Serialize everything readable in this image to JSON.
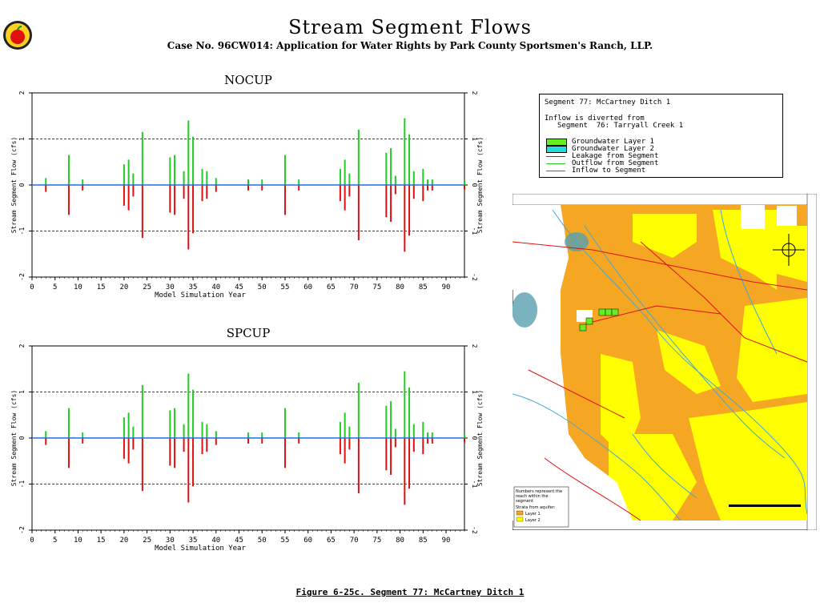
{
  "header": {
    "title": "Stream Segment Flows",
    "subtitle": "Case No. 96CW014: Application for Water Rights by Park County Sportsmen's Ranch, LLP."
  },
  "legend": {
    "segment": "Segment 77: McCartney Ditch 1",
    "diverted_line1": "Inflow is diverted from",
    "diverted_line2": "Segment  76: Tarryall Creek 1",
    "items": [
      {
        "label": "Groundwater Layer 1",
        "kind": "swatch",
        "color": "#66ee22"
      },
      {
        "label": "Groundwater Layer 2",
        "kind": "swatch",
        "color": "#22dddd"
      },
      {
        "label": "Leakage from Segment",
        "kind": "line",
        "color": "#dd1111"
      },
      {
        "label": "Outflow from Segment",
        "kind": "line",
        "color": "#22cc22"
      },
      {
        "label": "Inflow to Segment",
        "kind": "line",
        "color": "#1e6ee6"
      }
    ]
  },
  "caption": "Figure 6-25c.  Segment 77: McCartney Ditch 1",
  "map": {
    "note_lines": [
      "Numbers represent the",
      "reach within the",
      "segment"
    ],
    "strata_label": "Strata from aquifer:",
    "layer_labels": [
      "Layer 1",
      "Layer 2"
    ],
    "colors": {
      "layer1": "#f5a623",
      "layer2": "#ffff00",
      "stream": "#40a8d8",
      "road": "#dd1111"
    }
  },
  "chart_data": [
    {
      "type": "bar",
      "title": "NOCUP",
      "xlabel": "Model Simulation Year",
      "ylabel": "Stream Segment Flow  (cfs)",
      "ylabel_right": "Stream Segment Flow  (cfs)",
      "xlim": [
        0,
        94
      ],
      "ylim": [
        -2,
        2
      ],
      "xticks": [
        0,
        5,
        10,
        15,
        20,
        25,
        30,
        35,
        40,
        45,
        50,
        55,
        60,
        65,
        70,
        75,
        80,
        85,
        90
      ],
      "yticks": [
        -2,
        -1,
        0,
        1,
        2
      ],
      "reference_lines": [
        1,
        -1
      ],
      "series": [
        {
          "name": "Outflow from Segment",
          "color": "#22cc22",
          "x": [
            3,
            8,
            11,
            20,
            21,
            22,
            24,
            30,
            31,
            33,
            34,
            35,
            37,
            38,
            40,
            47,
            50,
            55,
            58,
            67,
            68,
            69,
            71,
            77,
            78,
            79,
            81,
            82,
            83,
            85,
            86,
            87,
            94
          ],
          "values": [
            0.15,
            0.65,
            0.12,
            0.45,
            0.55,
            0.25,
            1.15,
            0.6,
            0.65,
            0.3,
            1.4,
            1.05,
            0.35,
            0.3,
            0.15,
            0.12,
            0.12,
            0.65,
            0.12,
            0.35,
            0.55,
            0.25,
            1.2,
            0.7,
            0.8,
            0.2,
            1.45,
            1.1,
            0.3,
            0.35,
            0.12,
            0.12,
            0.1
          ]
        },
        {
          "name": "Leakage from Segment",
          "color": "#dd1111",
          "x": [
            3,
            8,
            11,
            20,
            21,
            22,
            24,
            30,
            31,
            33,
            34,
            35,
            37,
            38,
            40,
            47,
            50,
            55,
            58,
            67,
            68,
            69,
            71,
            77,
            78,
            79,
            81,
            82,
            83,
            85,
            86,
            87,
            94
          ],
          "values": [
            -0.15,
            -0.65,
            -0.12,
            -0.45,
            -0.55,
            -0.25,
            -1.15,
            -0.6,
            -0.65,
            -0.3,
            -1.4,
            -1.05,
            -0.35,
            -0.3,
            -0.15,
            -0.12,
            -0.12,
            -0.65,
            -0.12,
            -0.35,
            -0.55,
            -0.25,
            -1.2,
            -0.7,
            -0.8,
            -0.2,
            -1.45,
            -1.1,
            -0.3,
            -0.35,
            -0.12,
            -0.12,
            -0.1
          ]
        },
        {
          "name": "Inflow to Segment",
          "color": "#1e6ee6",
          "x": [
            0,
            94
          ],
          "values": [
            0,
            0
          ]
        }
      ]
    },
    {
      "type": "bar",
      "title": "SPCUP",
      "xlabel": "Model Simulation Year",
      "ylabel": "Stream Segment Flow  (cfs)",
      "ylabel_right": "Stream Segment Flow  (cfs)",
      "xlim": [
        0,
        94
      ],
      "ylim": [
        -2,
        2
      ],
      "xticks": [
        0,
        5,
        10,
        15,
        20,
        25,
        30,
        35,
        40,
        45,
        50,
        55,
        60,
        65,
        70,
        75,
        80,
        85,
        90
      ],
      "yticks": [
        -2,
        -1,
        0,
        1,
        2
      ],
      "reference_lines": [
        1,
        -1
      ],
      "series": [
        {
          "name": "Outflow from Segment",
          "color": "#22cc22",
          "x": [
            3,
            8,
            11,
            20,
            21,
            22,
            24,
            30,
            31,
            33,
            34,
            35,
            37,
            38,
            40,
            47,
            50,
            55,
            58,
            67,
            68,
            69,
            71,
            77,
            78,
            79,
            81,
            82,
            83,
            85,
            86,
            87,
            94
          ],
          "values": [
            0.15,
            0.65,
            0.12,
            0.45,
            0.55,
            0.25,
            1.15,
            0.6,
            0.65,
            0.3,
            1.4,
            1.05,
            0.35,
            0.3,
            0.15,
            0.12,
            0.12,
            0.65,
            0.12,
            0.35,
            0.55,
            0.25,
            1.2,
            0.7,
            0.8,
            0.2,
            1.45,
            1.1,
            0.3,
            0.35,
            0.12,
            0.12,
            0.1
          ]
        },
        {
          "name": "Leakage from Segment",
          "color": "#dd1111",
          "x": [
            3,
            8,
            11,
            20,
            21,
            22,
            24,
            30,
            31,
            33,
            34,
            35,
            37,
            38,
            40,
            47,
            50,
            55,
            58,
            67,
            68,
            69,
            71,
            77,
            78,
            79,
            81,
            82,
            83,
            85,
            86,
            87,
            94
          ],
          "values": [
            -0.15,
            -0.65,
            -0.12,
            -0.45,
            -0.55,
            -0.25,
            -1.15,
            -0.6,
            -0.65,
            -0.3,
            -1.4,
            -1.05,
            -0.35,
            -0.3,
            -0.15,
            -0.12,
            -0.12,
            -0.65,
            -0.12,
            -0.35,
            -0.55,
            -0.25,
            -1.2,
            -0.7,
            -0.8,
            -0.2,
            -1.45,
            -1.1,
            -0.3,
            -0.35,
            -0.12,
            -0.12,
            -0.1
          ]
        },
        {
          "name": "Inflow to Segment",
          "color": "#1e6ee6",
          "x": [
            0,
            94
          ],
          "values": [
            0,
            0
          ]
        }
      ]
    }
  ]
}
